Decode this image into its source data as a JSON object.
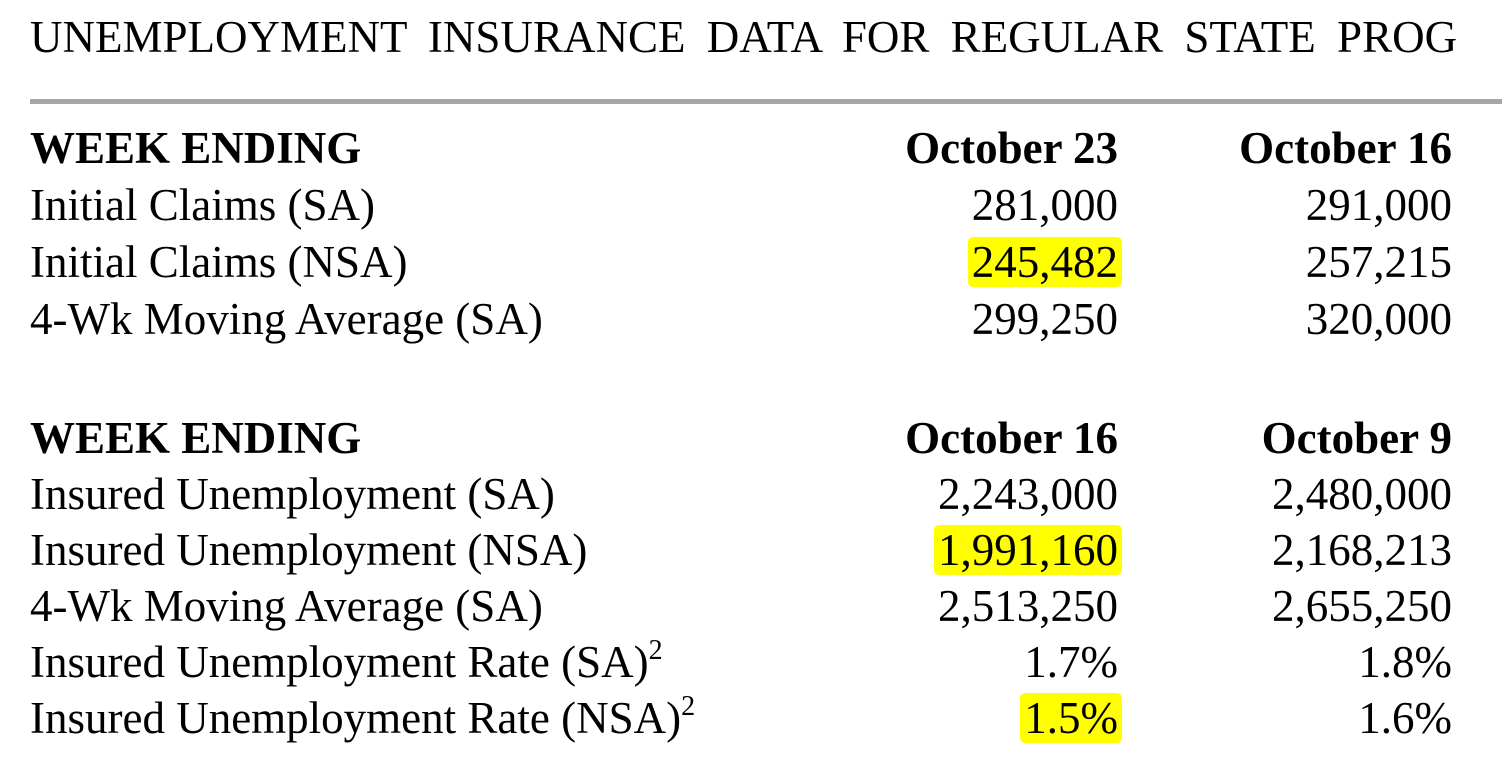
{
  "title": "UNEMPLOYMENT INSURANCE DATA FOR REGULAR STATE PROG",
  "highlight_color": "#ffff00",
  "table1": {
    "header": {
      "label": "WEEK ENDING",
      "col1": "October 23",
      "col2": "October 16"
    },
    "rows": [
      {
        "label": "Initial Claims (SA)",
        "col1": "281,000",
        "col2": "291,000",
        "highlighted": false
      },
      {
        "label": "Initial Claims (NSA)",
        "col1": "245,482",
        "col2": "257,215",
        "highlighted": true
      },
      {
        "label": "4-Wk Moving Average (SA)",
        "col1": "299,250",
        "col2": "320,000",
        "highlighted": false
      }
    ]
  },
  "table2": {
    "header": {
      "label": "WEEK ENDING",
      "col1": "October 16",
      "col2": "October 9"
    },
    "rows": [
      {
        "label": "Insured Unemployment (SA)",
        "col1": "2,243,000",
        "col2": "2,480,000",
        "highlighted": false
      },
      {
        "label": "Insured Unemployment (NSA)",
        "col1": "1,991,160",
        "col2": "2,168,213",
        "highlighted": true
      },
      {
        "label": "4-Wk Moving Average (SA)",
        "col1": "2,513,250",
        "col2": "2,655,250",
        "highlighted": false
      },
      {
        "label": "Insured Unemployment Rate (SA)",
        "footnote": "2",
        "col1": "1.7%",
        "col2": "1.8%",
        "highlighted": false
      },
      {
        "label": "Insured Unemployment Rate (NSA)",
        "footnote": "2",
        "col1": "1.5%",
        "col2": "1.6%",
        "highlighted": true
      }
    ]
  }
}
